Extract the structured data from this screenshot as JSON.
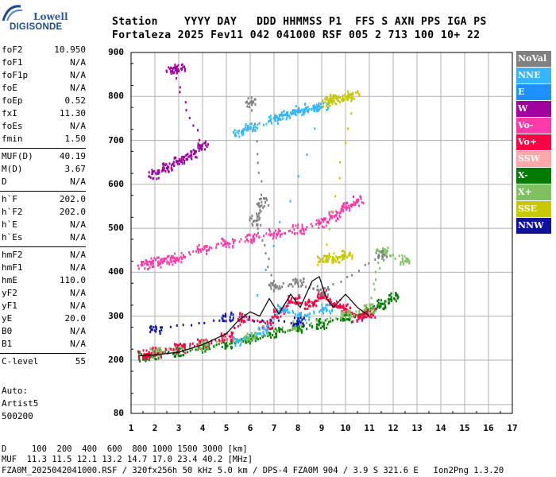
{
  "logo": {
    "line1": "Lowell",
    "line2": "DIGISONDE"
  },
  "header": {
    "labels": "Station    YYYY DAY   DDD HHMMSS P1  FFS S AXN PPS IGA PS",
    "values": "Fortaleza 2025 Fev11 042 041000 RSF 005 2 713 100 10+ 22"
  },
  "parameters": [
    {
      "label": "foF2",
      "value": "10.950"
    },
    {
      "label": "foF1",
      "value": "N/A"
    },
    {
      "label": "foF1p",
      "value": "N/A"
    },
    {
      "label": "foE",
      "value": "N/A"
    },
    {
      "label": "foEp",
      "value": "0.52"
    },
    {
      "label": "fxI",
      "value": "11.30"
    },
    {
      "label": "foEs",
      "value": "N/A"
    },
    {
      "label": "fmin",
      "value": "1.50"
    },
    {
      "label": "MUF(D)",
      "value": "40.19"
    },
    {
      "label": "M(D)",
      "value": "3.67"
    },
    {
      "label": "D",
      "value": "N/A"
    },
    {
      "label": "h`F",
      "value": "202.0"
    },
    {
      "label": "h`F2",
      "value": "202.0"
    },
    {
      "label": "h`E",
      "value": "N/A"
    },
    {
      "label": "h`Es",
      "value": "N/A"
    },
    {
      "label": "hmF2",
      "value": "N/A"
    },
    {
      "label": "hmF1",
      "value": "N/A"
    },
    {
      "label": "hmE",
      "value": "110.0"
    },
    {
      "label": "yF2",
      "value": "N/A"
    },
    {
      "label": "yF1",
      "value": "N/A"
    },
    {
      "label": "yE",
      "value": "20.0"
    },
    {
      "label": "B0",
      "value": "N/A"
    },
    {
      "label": "B1",
      "value": "N/A"
    },
    {
      "label": "C-level",
      "value": "55"
    }
  ],
  "autoscaling": {
    "line1": "Auto:",
    "line2": "Artist5",
    "line3": "500200"
  },
  "legend": [
    {
      "label": "NoVal",
      "color": "#808080"
    },
    {
      "label": "NNE",
      "color": "#33b5ff"
    },
    {
      "label": "E",
      "color": "#1e90ff"
    },
    {
      "label": "W",
      "color": "#a0009e"
    },
    {
      "label": "Vo-",
      "color": "#ff3aa8"
    },
    {
      "label": "Vo+",
      "color": "#ff0044"
    },
    {
      "label": "SSW",
      "color": "#ffa8a8"
    },
    {
      "label": "X-",
      "color": "#007a00"
    },
    {
      "label": "X+",
      "color": "#7fc060"
    },
    {
      "label": "SSE",
      "color": "#c8c800"
    },
    {
      "label": "NNW",
      "color": "#1010a0"
    }
  ],
  "footer": {
    "line1": "D     100  200  400  600  800 1000 1500 3000 [km]",
    "line2": "MUF  11.3 11.5 12.1 13.2 14.7 17.0 23.4 40.2 [MHz]",
    "line3": "FZA0M_2025042041000.RSF / 320fx256h 50 kHz 5.0 km / DPS-4 FZA0M 904 / 3.9 S 321.6 E   Ion2Png 1.3.20"
  },
  "chart_data": {
    "type": "scatter",
    "x_ticks": [
      "1",
      "2",
      "3",
      "4",
      "5",
      "6",
      "7",
      "8",
      "9",
      "10",
      "11",
      "12",
      "13",
      "14",
      "15",
      "16",
      "17"
    ],
    "y_ticks": [
      "900",
      "800",
      "700",
      "600",
      "500",
      "400",
      "300",
      "200",
      "80"
    ],
    "xlim": [
      1,
      17
    ],
    "ylim": [
      80,
      900
    ],
    "grid": true,
    "legend_position": "right",
    "series": [
      {
        "name": "X-",
        "points": [
          [
            1.5,
            210
          ],
          [
            2,
            215
          ],
          [
            3,
            222
          ],
          [
            4,
            230
          ],
          [
            5,
            240
          ],
          [
            6,
            250
          ],
          [
            7,
            265
          ],
          [
            8,
            275
          ],
          [
            9,
            285
          ],
          [
            10,
            300
          ],
          [
            11,
            315
          ],
          [
            11.5,
            330
          ],
          [
            12,
            345
          ]
        ]
      },
      {
        "name": "Vo+",
        "points": [
          [
            1.5,
            215
          ],
          [
            2,
            220
          ],
          [
            3,
            230
          ],
          [
            4,
            240
          ],
          [
            5,
            255
          ],
          [
            5.7,
            300
          ],
          [
            6.7,
            285
          ],
          [
            7.2,
            310
          ],
          [
            7.8,
            340
          ],
          [
            8.5,
            330
          ],
          [
            9,
            350
          ],
          [
            9.5,
            330
          ],
          [
            10,
            320
          ],
          [
            10.5,
            300
          ],
          [
            11,
            310
          ]
        ]
      },
      {
        "name": "Vo-",
        "points": [
          [
            1.5,
            420
          ],
          [
            2,
            425
          ],
          [
            2.5,
            430
          ],
          [
            3,
            435
          ],
          [
            4,
            455
          ],
          [
            5,
            470
          ],
          [
            6,
            480
          ],
          [
            7,
            490
          ],
          [
            8,
            500
          ],
          [
            9,
            515
          ],
          [
            9.5,
            530
          ],
          [
            10,
            550
          ],
          [
            10.5,
            565
          ]
        ]
      },
      {
        "name": "W",
        "points": [
          [
            1.9,
            625
          ],
          [
            2.5,
            640
          ],
          [
            3,
            655
          ],
          [
            3.5,
            670
          ],
          [
            4,
            690
          ],
          [
            2.7,
            860
          ],
          [
            3,
            870
          ]
        ]
      },
      {
        "name": "NNE",
        "points": [
          [
            5.5,
            720
          ],
          [
            6,
            730
          ],
          [
            7,
            750
          ],
          [
            7.5,
            760
          ],
          [
            8,
            770
          ],
          [
            8.5,
            775
          ],
          [
            9,
            780
          ],
          [
            5.5,
            245
          ],
          [
            6.5,
            270
          ],
          [
            7.3,
            320
          ],
          [
            8.2,
            300
          ],
          [
            9.2,
            320
          ]
        ]
      },
      {
        "name": "SSE",
        "points": [
          [
            9.2,
            790
          ],
          [
            9.5,
            795
          ],
          [
            10,
            800
          ],
          [
            10.3,
            805
          ],
          [
            9,
            430
          ],
          [
            9.5,
            435
          ],
          [
            10,
            440
          ]
        ]
      },
      {
        "name": "X+",
        "points": [
          [
            2,
            220
          ],
          [
            4,
            235
          ],
          [
            6,
            255
          ],
          [
            8,
            280
          ],
          [
            10,
            305
          ],
          [
            11,
            320
          ],
          [
            11.5,
            450
          ],
          [
            12.5,
            430
          ]
        ]
      },
      {
        "name": "NoVal",
        "points": [
          [
            6,
            790
          ],
          [
            6.5,
            560
          ],
          [
            6.2,
            520
          ],
          [
            7,
            370
          ],
          [
            8,
            380
          ],
          [
            9,
            360
          ],
          [
            11.5,
            440
          ]
        ]
      },
      {
        "name": "NNW",
        "points": [
          [
            2,
            270
          ],
          [
            5,
            300
          ],
          [
            8,
            290
          ]
        ]
      }
    ],
    "trace": [
      [
        1.3,
        210
      ],
      [
        2,
        212
      ],
      [
        3,
        218
      ],
      [
        4,
        235
      ],
      [
        5,
        260
      ],
      [
        5.5,
        290
      ],
      [
        6,
        310
      ],
      [
        6.4,
        300
      ],
      [
        6.8,
        340
      ],
      [
        7.2,
        305
      ],
      [
        7.7,
        350
      ],
      [
        8.1,
        320
      ],
      [
        8.6,
        380
      ],
      [
        8.9,
        390
      ],
      [
        9.2,
        340
      ],
      [
        9.5,
        320
      ],
      [
        10,
        350
      ],
      [
        10.5,
        320
      ],
      [
        11,
        300
      ]
    ]
  }
}
